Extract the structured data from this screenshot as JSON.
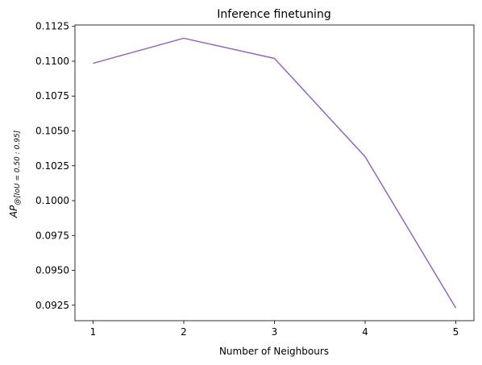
{
  "chart_data": {
    "type": "line",
    "title": "Inference finetuning",
    "xlabel": "Number of Neighbours",
    "ylabel": {
      "main": "AP",
      "subscript": "@[IoU = 0.50 : 0.95]"
    },
    "x": [
      1,
      2,
      3,
      4,
      5
    ],
    "series": [
      {
        "values": [
          0.10985,
          0.11165,
          0.1102,
          0.10315,
          0.0923
        ],
        "color": "#9467bd"
      }
    ],
    "xticks": [
      1,
      2,
      3,
      4,
      5
    ],
    "xtick_labels": [
      "1",
      "2",
      "3",
      "4",
      "5"
    ],
    "yticks": [
      0.0925,
      0.095,
      0.0975,
      0.1,
      0.1025,
      0.105,
      0.1075,
      0.11,
      0.1125
    ],
    "ytick_labels": [
      "0.0925",
      "0.0950",
      "0.0975",
      "0.1000",
      "0.1025",
      "0.1050",
      "0.1075",
      "0.1100",
      "0.1125"
    ],
    "xlim": [
      0.8,
      5.2
    ],
    "ylim": [
      0.09139,
      0.1126
    ],
    "grid": false,
    "legend": false
  }
}
